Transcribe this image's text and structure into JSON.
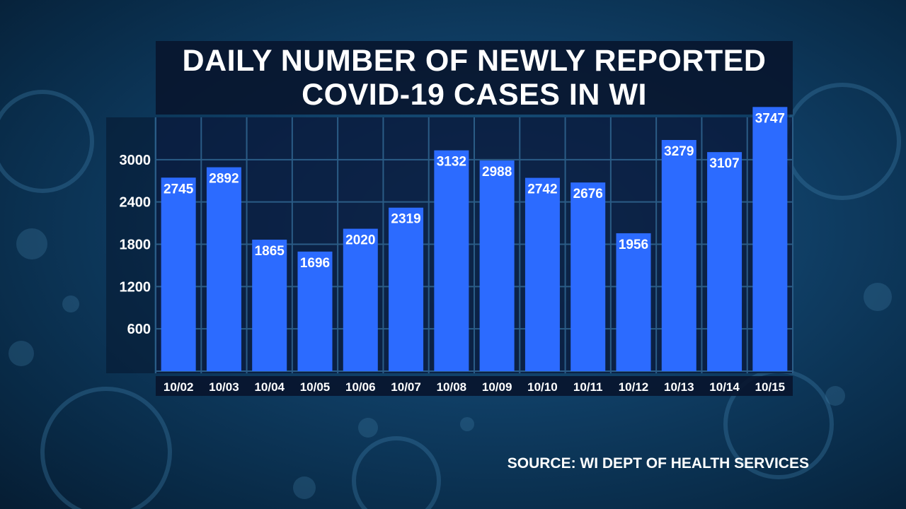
{
  "title_lines": [
    "DAILY NUMBER OF NEWLY REPORTED",
    "COVID-19 CASES IN WI"
  ],
  "source": "SOURCE: WI DEPT OF HEALTH SERVICES",
  "colors": {
    "bar": "#2c6bff",
    "grid": "#2b5c86",
    "text": "#ffffff"
  },
  "chart_data": {
    "type": "bar",
    "title": "DAILY NUMBER OF NEWLY REPORTED COVID-19 CASES IN WI",
    "categories": [
      "10/02",
      "10/03",
      "10/04",
      "10/05",
      "10/06",
      "10/07",
      "10/08",
      "10/09",
      "10/10",
      "10/11",
      "10/12",
      "10/13",
      "10/14",
      "10/15"
    ],
    "values": [
      2745,
      2892,
      1865,
      1696,
      2020,
      2319,
      3132,
      2988,
      2742,
      2676,
      1956,
      3279,
      3107,
      3747
    ],
    "yticks": [
      600,
      1200,
      1800,
      2400,
      3000
    ],
    "ylim": [
      0,
      3600
    ],
    "grid": true,
    "data_labels": true
  }
}
